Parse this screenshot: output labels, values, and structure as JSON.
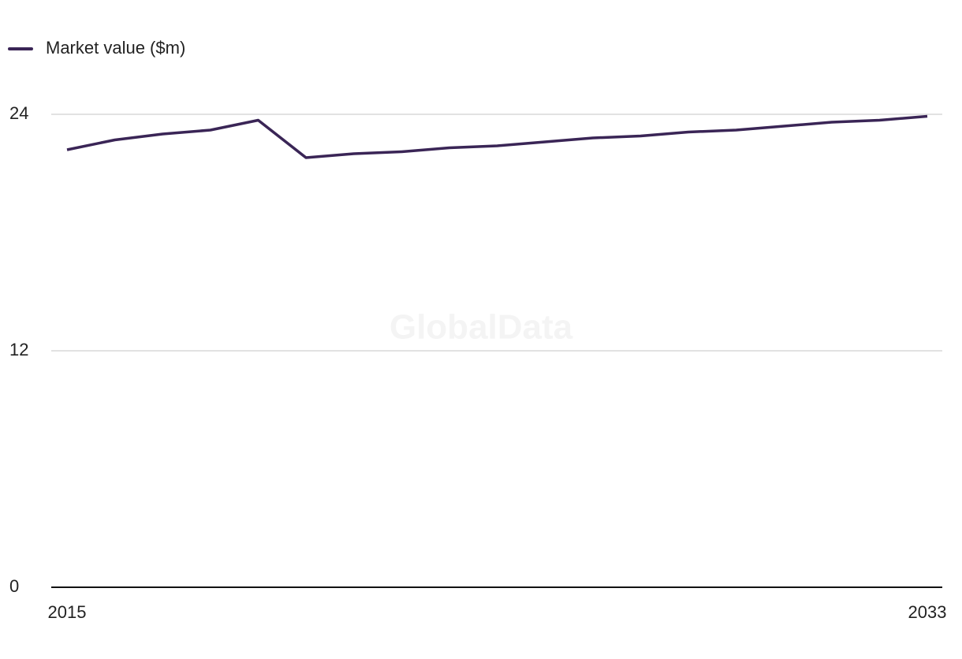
{
  "chart_data": {
    "type": "line",
    "legend_position": "top-left",
    "watermark": "GlobalData",
    "x": [
      2015,
      2016,
      2017,
      2018,
      2019,
      2020,
      2021,
      2022,
      2023,
      2024,
      2025,
      2026,
      2027,
      2028,
      2029,
      2030,
      2031,
      2032,
      2033
    ],
    "series": [
      {
        "name": "Market value ($m)",
        "color": "#3a2556",
        "values": [
          22.2,
          22.7,
          23.0,
          23.2,
          23.7,
          21.8,
          22.0,
          22.1,
          22.3,
          22.4,
          22.6,
          22.8,
          22.9,
          23.1,
          23.2,
          23.4,
          23.6,
          23.7,
          23.9
        ]
      }
    ],
    "xlim": [
      2015,
      2033
    ],
    "xticks": [
      2015,
      2033
    ],
    "ylim": [
      0,
      24
    ],
    "yticks": [
      0,
      12,
      24
    ],
    "grid": true
  }
}
